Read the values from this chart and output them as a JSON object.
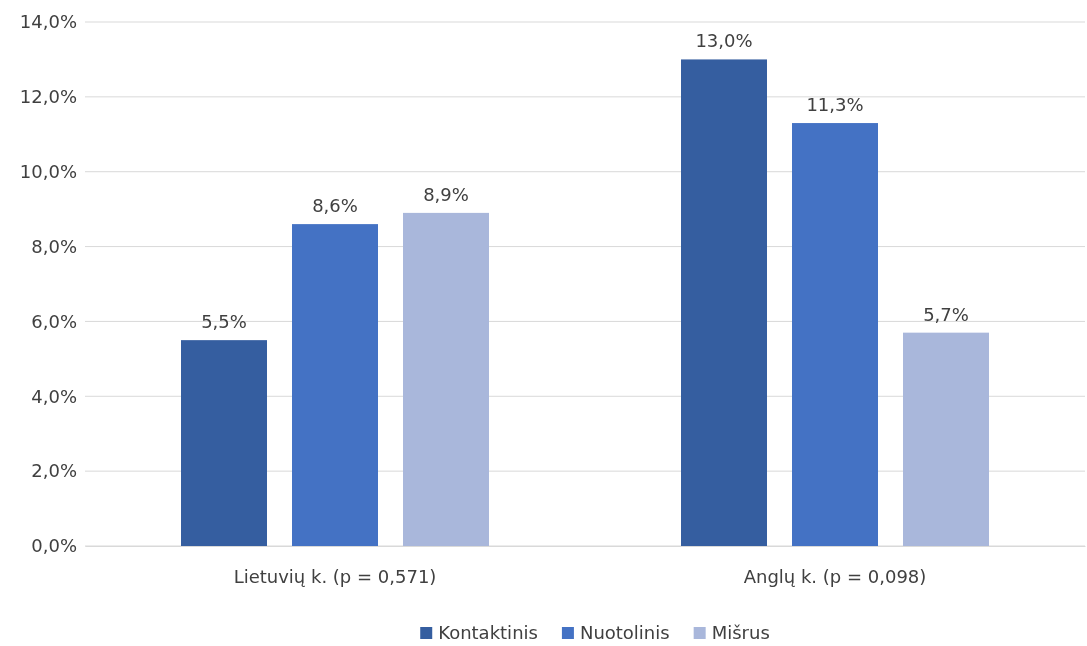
{
  "chart_data": {
    "type": "bar",
    "categories": [
      "Lietuvių k. (p = 0,571)",
      "Anglų k. (p = 0,098)"
    ],
    "series": [
      {
        "name": "Kontaktinis",
        "color": "#355ea0",
        "values": [
          5.5,
          13.0
        ],
        "value_labels": [
          "5,5%",
          "13,0%"
        ]
      },
      {
        "name": "Nuotolinis",
        "color": "#4472c4",
        "values": [
          8.6,
          11.3
        ],
        "value_labels": [
          "8,6%",
          "11,3%"
        ]
      },
      {
        "name": "Mišrus",
        "color": "#a9b7db",
        "values": [
          8.9,
          5.7
        ],
        "value_labels": [
          "8,9%",
          "5,7%"
        ]
      }
    ],
    "ylim": [
      0,
      14
    ],
    "yticks": [
      {
        "value": 0,
        "label": "0,0%"
      },
      {
        "value": 2,
        "label": "2,0%"
      },
      {
        "value": 4,
        "label": "4,0%"
      },
      {
        "value": 6,
        "label": "6,0%"
      },
      {
        "value": 8,
        "label": "8,0%"
      },
      {
        "value": 10,
        "label": "10,0%"
      },
      {
        "value": 12,
        "label": "12,0%"
      },
      {
        "value": 14,
        "label": "14,0%"
      }
    ],
    "grid": "y",
    "legend": "bottom"
  }
}
